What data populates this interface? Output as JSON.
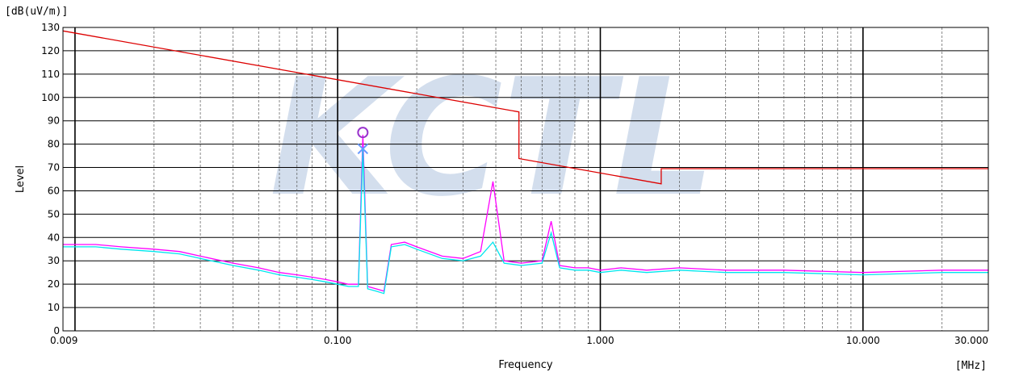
{
  "chart_data": {
    "type": "line",
    "title": "",
    "xlabel": "Frequency",
    "ylabel": "Level",
    "y_unit": "[dB(uV/m)]",
    "x_unit": "[MHz]",
    "watermark": "KCTL",
    "x_scale": "log",
    "xlim": [
      0.009,
      30
    ],
    "ylim": [
      0,
      130
    ],
    "grid": true,
    "x_tick_labels": [
      {
        "value": 0.009,
        "label": "0.009"
      },
      {
        "value": 0.1,
        "label": "0.100"
      },
      {
        "value": 1,
        "label": "1.000"
      },
      {
        "value": 10,
        "label": "10.000"
      },
      {
        "value": 30,
        "label": "30.000"
      }
    ],
    "y_ticks": [
      0,
      10,
      20,
      30,
      40,
      50,
      60,
      70,
      80,
      90,
      100,
      110,
      120,
      130
    ],
    "limit_line": {
      "color": "#dd0000",
      "x": [
        0.009,
        0.49,
        0.49,
        1.705,
        1.705,
        30
      ],
      "y": [
        128.5,
        93.8,
        73.8,
        63.0,
        69.5,
        69.5
      ]
    },
    "markers": [
      {
        "symbol": "circle",
        "x": 0.1247,
        "y": 85,
        "color": "#9933cc"
      },
      {
        "symbol": "cross",
        "x": 0.1247,
        "y": 78,
        "color": "#6699ff"
      }
    ],
    "series": [
      {
        "color": "#ff00ff",
        "x": [
          0.009,
          0.012,
          0.015,
          0.02,
          0.025,
          0.03,
          0.04,
          0.05,
          0.06,
          0.07,
          0.08,
          0.09,
          0.1,
          0.11,
          0.12,
          0.1247,
          0.13,
          0.14,
          0.15,
          0.16,
          0.18,
          0.2,
          0.25,
          0.3,
          0.35,
          0.39,
          0.43,
          0.5,
          0.6,
          0.65,
          0.7,
          0.8,
          0.9,
          1.0,
          1.2,
          1.5,
          2,
          3,
          5,
          10,
          20,
          30
        ],
        "y": [
          37,
          37,
          36,
          35,
          34,
          32,
          29,
          27,
          25,
          24,
          23,
          22,
          21,
          20,
          20,
          84,
          19,
          18,
          17,
          37,
          38,
          36,
          32,
          31,
          34,
          64,
          30,
          29,
          30,
          47,
          28,
          27,
          27,
          26,
          27,
          26,
          27,
          26,
          26,
          25,
          26,
          26
        ]
      },
      {
        "color": "#00e5ee",
        "x": [
          0.009,
          0.012,
          0.015,
          0.02,
          0.025,
          0.03,
          0.04,
          0.05,
          0.06,
          0.07,
          0.08,
          0.09,
          0.1,
          0.11,
          0.12,
          0.1247,
          0.13,
          0.14,
          0.15,
          0.16,
          0.18,
          0.2,
          0.25,
          0.3,
          0.35,
          0.39,
          0.43,
          0.5,
          0.6,
          0.65,
          0.7,
          0.8,
          0.9,
          1.0,
          1.2,
          1.5,
          2,
          3,
          5,
          10,
          20,
          30
        ],
        "y": [
          36,
          36,
          35,
          34,
          33,
          31,
          28,
          26,
          24,
          23,
          22,
          21,
          20,
          19,
          19,
          78,
          18,
          17,
          16,
          36,
          37,
          35,
          31,
          30,
          32,
          38,
          29,
          28,
          29,
          42,
          27,
          26,
          26,
          25,
          26,
          25,
          26,
          25,
          25,
          24,
          25,
          25
        ]
      }
    ]
  }
}
